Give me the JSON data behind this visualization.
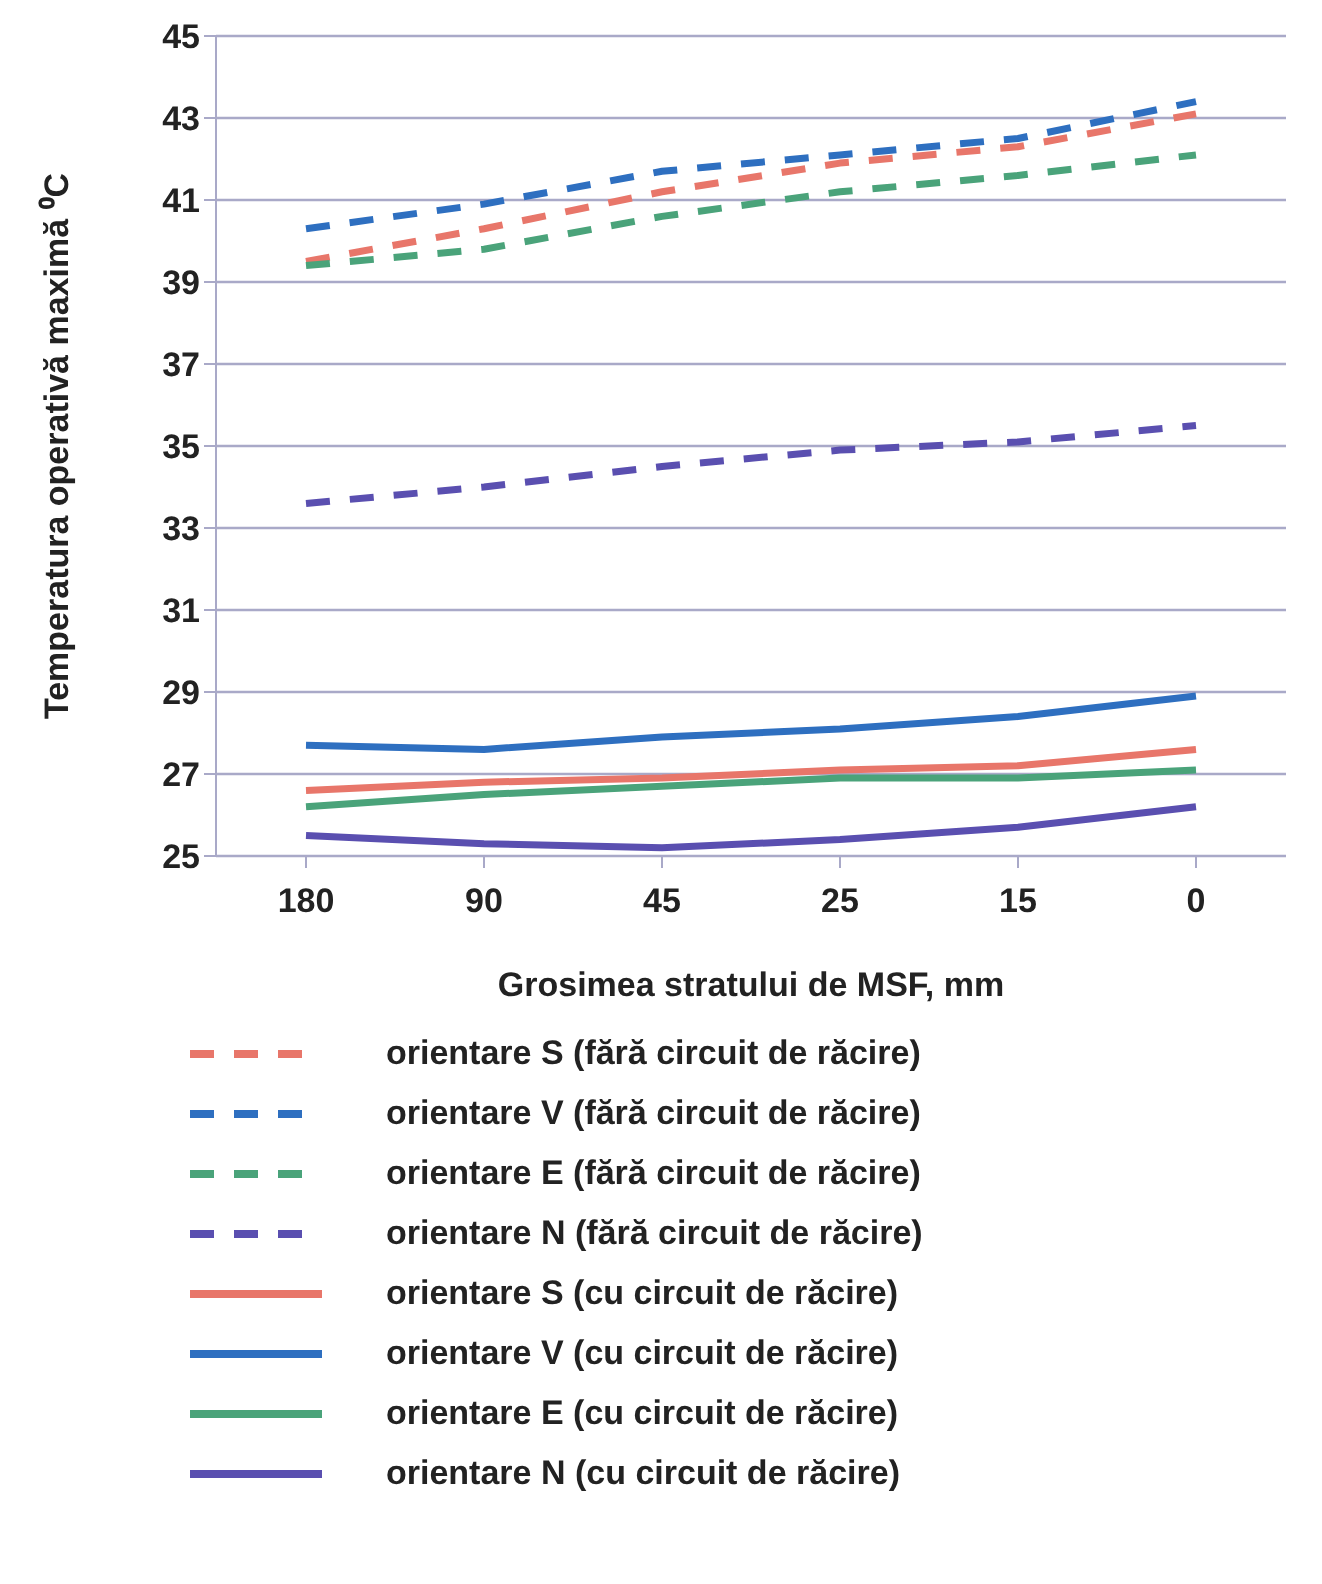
{
  "chart_data": {
    "type": "line",
    "xlabel": "Grosimea stratului de MSF, mm",
    "ylabel": "Temperatura operativă maximă ⁰C",
    "categories": [
      "180",
      "90",
      "45",
      "25",
      "15",
      "0"
    ],
    "ylim": [
      25,
      45
    ],
    "yticks": [
      25,
      27,
      29,
      31,
      33,
      35,
      37,
      39,
      41,
      43,
      45
    ],
    "grid": "y",
    "legend": "bottom",
    "marker": "none",
    "series": [
      {
        "name": "orientare S (fără circuit de răcire)",
        "color": "#e8766a",
        "line_style": "dashed",
        "values": [
          39.5,
          40.3,
          41.2,
          41.9,
          42.3,
          43.1
        ]
      },
      {
        "name": "orientare V (fără circuit de răcire)",
        "color": "#2e6fc0",
        "line_style": "dashed",
        "values": [
          40.3,
          40.9,
          41.7,
          42.1,
          42.5,
          43.4
        ]
      },
      {
        "name": "orientare E (fără circuit de răcire)",
        "color": "#4aa37a",
        "line_style": "dashed",
        "values": [
          39.4,
          39.8,
          40.6,
          41.2,
          41.6,
          42.1
        ]
      },
      {
        "name": "orientare N (fără circuit de răcire)",
        "color": "#5a4fb0",
        "line_style": "dashed",
        "values": [
          33.6,
          34.0,
          34.5,
          34.9,
          35.1,
          35.5
        ]
      },
      {
        "name": "orientare S (cu circuit de răcire)",
        "color": "#e8766a",
        "line_style": "solid",
        "values": [
          26.6,
          26.8,
          26.9,
          27.1,
          27.2,
          27.6
        ]
      },
      {
        "name": "orientare V (cu circuit de răcire)",
        "color": "#2e6fc0",
        "line_style": "solid",
        "values": [
          27.7,
          27.6,
          27.9,
          28.1,
          28.4,
          28.9
        ]
      },
      {
        "name": "orientare E (cu circuit de răcire)",
        "color": "#4aa37a",
        "line_style": "solid",
        "values": [
          26.2,
          26.5,
          26.7,
          26.9,
          26.9,
          27.1
        ]
      },
      {
        "name": "orientare N (cu circuit de răcire)",
        "color": "#5a4fb0",
        "line_style": "solid",
        "values": [
          25.5,
          25.3,
          25.2,
          25.4,
          25.7,
          26.2
        ]
      }
    ]
  }
}
